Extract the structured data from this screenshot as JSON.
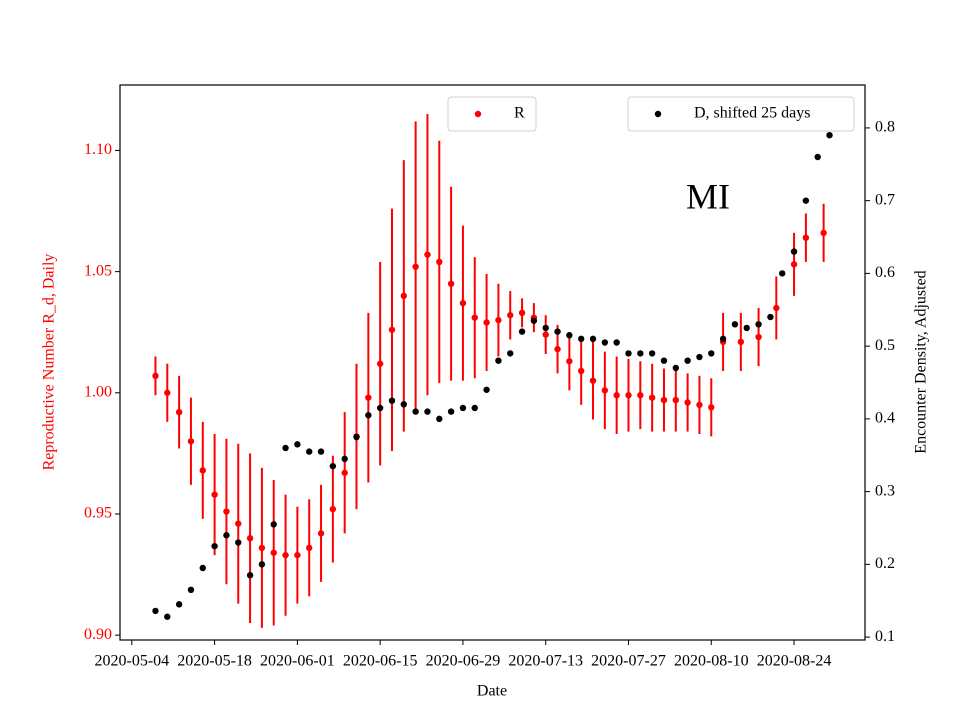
{
  "chart_data": {
    "type": "errorbar-dual",
    "annotation": "MI",
    "x_label": "Date",
    "y_label": "Reproductive Number R_d, Daily",
    "y2_label": "Encounter Density, Adjusted",
    "xlim": [
      "2020-05-02",
      "2020-09-05"
    ],
    "xticks": [
      "2020-05-04",
      "2020-05-18",
      "2020-06-01",
      "2020-06-15",
      "2020-06-29",
      "2020-07-13",
      "2020-07-27",
      "2020-08-10",
      "2020-08-24"
    ],
    "ylim": [
      0.898,
      1.127
    ],
    "yticks": [
      {
        "value": 0.9,
        "label": "0.90"
      },
      0.95,
      {
        "value": 1.0,
        "label": "1.00"
      },
      1.05,
      {
        "value": 1.1,
        "label": "1.10"
      }
    ],
    "y2lim": [
      0.096,
      0.859
    ],
    "y2ticks": [
      0.1,
      0.2,
      0.3,
      0.4,
      0.5,
      0.6,
      0.7,
      0.8
    ],
    "series": [
      {
        "name": "R",
        "color": "#ff0000",
        "axis": "y",
        "x": [
          "2020-05-08",
          "2020-05-10",
          "2020-05-12",
          "2020-05-14",
          "2020-05-16",
          "2020-05-18",
          "2020-05-20",
          "2020-05-22",
          "2020-05-24",
          "2020-05-26",
          "2020-05-28",
          "2020-05-30",
          "2020-06-01",
          "2020-06-03",
          "2020-06-05",
          "2020-06-07",
          "2020-06-09",
          "2020-06-11",
          "2020-06-13",
          "2020-06-15",
          "2020-06-17",
          "2020-06-19",
          "2020-06-21",
          "2020-06-23",
          "2020-06-25",
          "2020-06-27",
          "2020-06-29",
          "2020-07-01",
          "2020-07-03",
          "2020-07-05",
          "2020-07-07",
          "2020-07-09",
          "2020-07-11",
          "2020-07-13",
          "2020-07-15",
          "2020-07-17",
          "2020-07-19",
          "2020-07-21",
          "2020-07-23",
          "2020-07-25",
          "2020-07-27",
          "2020-07-29",
          "2020-07-31",
          "2020-08-02",
          "2020-08-04",
          "2020-08-06",
          "2020-08-08",
          "2020-08-10",
          "2020-08-12",
          "2020-08-15",
          "2020-08-18",
          "2020-08-21",
          "2020-08-24",
          "2020-08-26",
          "2020-08-29"
        ],
        "values": [
          1.007,
          1.0,
          0.992,
          0.98,
          0.968,
          0.958,
          0.951,
          0.946,
          0.94,
          0.936,
          0.934,
          0.933,
          0.933,
          0.936,
          0.942,
          0.952,
          0.967,
          0.982,
          0.998,
          1.012,
          1.026,
          1.04,
          1.052,
          1.057,
          1.054,
          1.045,
          1.037,
          1.031,
          1.029,
          1.03,
          1.032,
          1.033,
          1.031,
          1.024,
          1.018,
          1.013,
          1.009,
          1.005,
          1.001,
          0.999,
          0.999,
          0.999,
          0.998,
          0.997,
          0.997,
          0.996,
          0.995,
          0.994,
          1.021,
          1.021,
          1.023,
          1.035,
          1.053,
          1.064,
          1.066
        ],
        "errors": [
          0.008,
          0.012,
          0.015,
          0.018,
          0.02,
          0.025,
          0.03,
          0.033,
          0.035,
          0.033,
          0.03,
          0.025,
          0.02,
          0.02,
          0.02,
          0.022,
          0.025,
          0.03,
          0.035,
          0.042,
          0.05,
          0.056,
          0.06,
          0.058,
          0.05,
          0.04,
          0.032,
          0.025,
          0.02,
          0.015,
          0.01,
          0.006,
          0.006,
          0.008,
          0.01,
          0.012,
          0.014,
          0.016,
          0.016,
          0.016,
          0.015,
          0.014,
          0.014,
          0.013,
          0.013,
          0.012,
          0.012,
          0.012,
          0.012,
          0.012,
          0.012,
          0.013,
          0.013,
          0.01,
          0.012
        ]
      },
      {
        "name": "D, shifted 25 days",
        "color": "#000000",
        "axis": "y2",
        "x": [
          "2020-05-08",
          "2020-05-10",
          "2020-05-12",
          "2020-05-14",
          "2020-05-16",
          "2020-05-18",
          "2020-05-20",
          "2020-05-22",
          "2020-05-24",
          "2020-05-26",
          "2020-05-28",
          "2020-05-30",
          "2020-06-01",
          "2020-06-03",
          "2020-06-05",
          "2020-06-07",
          "2020-06-09",
          "2020-06-11",
          "2020-06-13",
          "2020-06-15",
          "2020-06-17",
          "2020-06-19",
          "2020-06-21",
          "2020-06-23",
          "2020-06-25",
          "2020-06-27",
          "2020-06-29",
          "2020-07-01",
          "2020-07-03",
          "2020-07-05",
          "2020-07-07",
          "2020-07-09",
          "2020-07-11",
          "2020-07-13",
          "2020-07-15",
          "2020-07-17",
          "2020-07-19",
          "2020-07-21",
          "2020-07-23",
          "2020-07-25",
          "2020-07-27",
          "2020-07-29",
          "2020-07-31",
          "2020-08-02",
          "2020-08-04",
          "2020-08-06",
          "2020-08-08",
          "2020-08-10",
          "2020-08-12",
          "2020-08-14",
          "2020-08-16",
          "2020-08-18",
          "2020-08-20",
          "2020-08-22",
          "2020-08-24",
          "2020-08-26",
          "2020-08-28",
          "2020-08-30"
        ],
        "values": [
          0.136,
          0.128,
          0.145,
          0.165,
          0.195,
          0.225,
          0.24,
          0.23,
          0.185,
          0.2,
          0.255,
          0.36,
          0.365,
          0.355,
          0.355,
          0.335,
          0.345,
          0.375,
          0.405,
          0.415,
          0.425,
          0.42,
          0.41,
          0.41,
          0.4,
          0.41,
          0.415,
          0.415,
          0.44,
          0.48,
          0.49,
          0.52,
          0.535,
          0.525,
          0.52,
          0.515,
          0.51,
          0.51,
          0.505,
          0.505,
          0.49,
          0.49,
          0.49,
          0.48,
          0.47,
          0.48,
          0.485,
          0.49,
          0.51,
          0.53,
          0.525,
          0.53,
          0.54,
          0.6,
          0.63,
          0.7,
          0.76,
          0.79
        ]
      }
    ]
  }
}
